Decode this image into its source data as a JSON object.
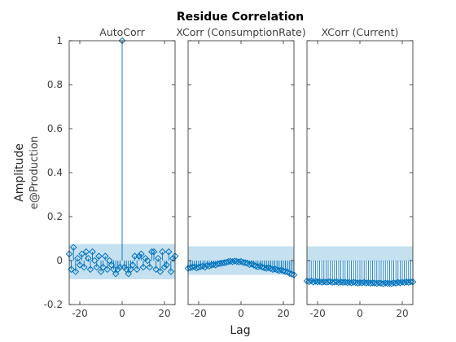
{
  "chart_data": {
    "type": "stem",
    "title": "Residue Correlation",
    "xlabel": "Lag",
    "ylabel": "Amplitude",
    "ylabel2": "e@Production",
    "ylim": [
      -0.2,
      1
    ],
    "xlim": [
      -25,
      25
    ],
    "y_ticks": [
      -0.2,
      0,
      0.2,
      0.4,
      0.6,
      0.8,
      1
    ],
    "y_tick_labels": [
      "-0.2",
      "0",
      "0.2",
      "0.4",
      "0.6",
      "0.8",
      "1"
    ],
    "x_ticks": [
      -20,
      0,
      20
    ],
    "x_tick_labels": [
      "-20",
      "0",
      "20"
    ],
    "colors": {
      "stem": "#0072bd",
      "band": "#c5e0ef",
      "axis": "#262626",
      "text": "#404040"
    },
    "panels": [
      {
        "subtitle": "AutoCorr",
        "confidence_band": [
          -0.085,
          0.075
        ],
        "lags": [
          -25,
          -24,
          -23,
          -22,
          -21,
          -20,
          -19,
          -18,
          -17,
          -16,
          -15,
          -14,
          -13,
          -12,
          -11,
          -10,
          -9,
          -8,
          -7,
          -6,
          -5,
          -4,
          -3,
          -2,
          -1,
          0,
          1,
          2,
          3,
          4,
          5,
          6,
          7,
          8,
          9,
          10,
          11,
          12,
          13,
          14,
          15,
          16,
          17,
          18,
          19,
          20,
          21,
          22,
          23,
          24,
          25
        ],
        "values": [
          0.03,
          -0.04,
          0.06,
          -0.05,
          0.01,
          -0.02,
          0.03,
          -0.03,
          0.04,
          0.01,
          -0.04,
          0.04,
          0.0,
          -0.03,
          0.02,
          -0.05,
          -0.03,
          0.02,
          -0.04,
          0.0,
          -0.02,
          -0.04,
          -0.06,
          -0.04,
          -0.03,
          1.0,
          -0.03,
          -0.04,
          -0.06,
          -0.04,
          -0.02,
          0.02,
          -0.04,
          0.02,
          0.03,
          -0.03,
          0.01,
          0.0,
          -0.03,
          0.04,
          0.04,
          -0.04,
          0.01,
          -0.05,
          0.04,
          -0.03,
          -0.02,
          0.04,
          -0.05,
          0.01,
          0.02
        ]
      },
      {
        "subtitle": "XCorr (ConsumptionRate)",
        "confidence_band": [
          -0.065,
          0.065
        ],
        "lags": [
          -25,
          -24,
          -23,
          -22,
          -21,
          -20,
          -19,
          -18,
          -17,
          -16,
          -15,
          -14,
          -13,
          -12,
          -11,
          -10,
          -9,
          -8,
          -7,
          -6,
          -5,
          -4,
          -3,
          -2,
          -1,
          0,
          1,
          2,
          3,
          4,
          5,
          6,
          7,
          8,
          9,
          10,
          11,
          12,
          13,
          14,
          15,
          16,
          17,
          18,
          19,
          20,
          21,
          22,
          23,
          24,
          25
        ],
        "values": [
          -0.035,
          -0.032,
          -0.03,
          -0.028,
          -0.034,
          -0.03,
          -0.027,
          -0.025,
          -0.03,
          -0.022,
          -0.025,
          -0.02,
          -0.018,
          -0.02,
          -0.015,
          -0.013,
          -0.012,
          -0.01,
          -0.008,
          -0.005,
          -0.003,
          -0.005,
          -0.002,
          -0.004,
          -0.006,
          -0.004,
          -0.008,
          -0.01,
          -0.012,
          -0.018,
          -0.015,
          -0.02,
          -0.025,
          -0.028,
          -0.025,
          -0.03,
          -0.033,
          -0.035,
          -0.032,
          -0.036,
          -0.04,
          -0.038,
          -0.042,
          -0.045,
          -0.043,
          -0.047,
          -0.05,
          -0.052,
          -0.058,
          -0.062,
          -0.065
        ]
      },
      {
        "subtitle": "XCorr (Current)",
        "confidence_band": [
          -0.002,
          0.065
        ],
        "lags": [
          -25,
          -24,
          -23,
          -22,
          -21,
          -20,
          -19,
          -18,
          -17,
          -16,
          -15,
          -14,
          -13,
          -12,
          -11,
          -10,
          -9,
          -8,
          -7,
          -6,
          -5,
          -4,
          -3,
          -2,
          -1,
          0,
          1,
          2,
          3,
          4,
          5,
          6,
          7,
          8,
          9,
          10,
          11,
          12,
          13,
          14,
          15,
          16,
          17,
          18,
          19,
          20,
          21,
          22,
          23,
          24,
          25
        ],
        "values": [
          -0.093,
          -0.096,
          -0.092,
          -0.098,
          -0.094,
          -0.097,
          -0.095,
          -0.099,
          -0.096,
          -0.098,
          -0.097,
          -0.095,
          -0.099,
          -0.098,
          -0.096,
          -0.1,
          -0.097,
          -0.099,
          -0.098,
          -0.1,
          -0.099,
          -0.101,
          -0.098,
          -0.1,
          -0.102,
          -0.1,
          -0.101,
          -0.099,
          -0.102,
          -0.1,
          -0.103,
          -0.101,
          -0.102,
          -0.104,
          -0.101,
          -0.103,
          -0.105,
          -0.102,
          -0.104,
          -0.103,
          -0.105,
          -0.101,
          -0.103,
          -0.099,
          -0.101,
          -0.098,
          -0.1,
          -0.097,
          -0.099,
          -0.096,
          -0.097
        ]
      }
    ]
  }
}
